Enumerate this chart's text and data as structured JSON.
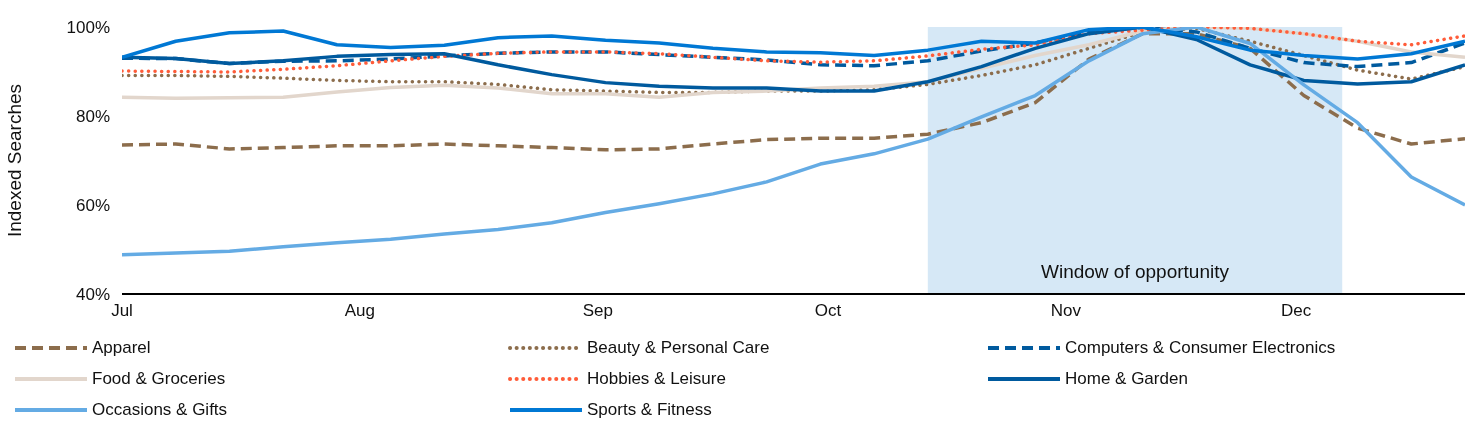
{
  "chart_data": {
    "type": "line",
    "ylabel": "Indexed Searches",
    "x": [
      "--07-01",
      "--07-08",
      "--07-15",
      "--07-22",
      "--07-29",
      "--08-05",
      "--08-12",
      "--08-19",
      "--08-26",
      "--09-02",
      "--09-09",
      "--09-16",
      "--09-23",
      "--09-30",
      "--10-07",
      "--10-14",
      "--10-21",
      "--10-28",
      "--11-04",
      "--11-11",
      "--11-18",
      "--11-25",
      "--12-02",
      "--12-09",
      "--12-16",
      "--12-23"
    ],
    "xlim": [
      "--07-01",
      "--12-23"
    ],
    "xticks": [
      {
        "value": "--07-01",
        "label": "Jul"
      },
      {
        "value": "--08-01",
        "label": "Aug"
      },
      {
        "value": "--09-01",
        "label": "Sep"
      },
      {
        "value": "--10-01",
        "label": "Oct"
      },
      {
        "value": "--11-01",
        "label": "Nov"
      },
      {
        "value": "--12-01",
        "label": "Dec"
      }
    ],
    "ylim": [
      40,
      100
    ],
    "yticks": [
      {
        "value": 40,
        "label": "40%"
      },
      {
        "value": 60,
        "label": "60%"
      },
      {
        "value": 80,
        "label": "80%"
      },
      {
        "value": 100,
        "label": "100%"
      }
    ],
    "legend": "bottom",
    "marker": "none",
    "bands": [
      {
        "axis": "x",
        "from": "--10-14",
        "to": "--12-07",
        "label": "Window of opportunity",
        "color": "#d6e8f6"
      }
    ],
    "series": [
      {
        "name": "Apparel",
        "color": "#8c6d4c",
        "line_style": "dashed",
        "values": [
          73.5,
          73.7,
          72.6,
          72.9,
          73.3,
          73.3,
          73.7,
          73.3,
          72.9,
          72.4,
          72.6,
          73.7,
          74.7,
          75,
          75,
          75.9,
          78.5,
          83,
          92.8,
          98.5,
          98.5,
          95.2,
          84.6,
          77.3,
          73.7,
          74.9
        ]
      },
      {
        "name": "Beauty & Personal Care",
        "color": "#8c6d4c",
        "line_style": "dotted",
        "values": [
          89.1,
          89.1,
          88.9,
          88.5,
          88,
          87.7,
          87.7,
          87.1,
          85.9,
          85.6,
          85.3,
          85.3,
          85.6,
          85.6,
          85.9,
          87.1,
          89.1,
          91.5,
          95.2,
          98.9,
          99.7,
          96.8,
          93.6,
          90.3,
          88.3,
          91.1
        ]
      },
      {
        "name": "Computers & Consumer Electronics",
        "color": "#005a9e",
        "line_style": "dashed",
        "values": [
          93,
          92.9,
          91.8,
          92.3,
          92.4,
          92.8,
          93.5,
          94.1,
          94.4,
          94.4,
          93.8,
          93.2,
          92.6,
          91.5,
          91.3,
          92.4,
          94.6,
          96.4,
          98.9,
          99.9,
          98.9,
          95.2,
          92,
          91.1,
          92,
          96.4
        ]
      },
      {
        "name": "Food & Groceries",
        "color": "#e2d6cc",
        "line_style": "solid",
        "values": [
          84.2,
          84,
          84.1,
          84.2,
          85.4,
          86.4,
          86.9,
          86.3,
          85,
          85,
          84.2,
          85.3,
          85.6,
          86.3,
          86.7,
          87.7,
          90.7,
          93.6,
          96,
          99.1,
          100,
          99.7,
          98.5,
          96.8,
          94.4,
          93.2
        ]
      },
      {
        "name": "Hobbies & Leisure",
        "color": "#ff5c39",
        "line_style": "dotted",
        "values": [
          90.1,
          90,
          89.9,
          90.5,
          91.3,
          92.4,
          93.4,
          94.1,
          94.4,
          94.4,
          94,
          93.2,
          92.4,
          92.1,
          92.4,
          93.5,
          95,
          96,
          98.5,
          99.3,
          100,
          99.7,
          98.5,
          96.8,
          96,
          98
        ]
      },
      {
        "name": "Home & Garden",
        "color": "#005a9e",
        "line_style": "solid",
        "values": [
          93.2,
          92.9,
          91.8,
          92.4,
          93.4,
          93.8,
          94,
          91.5,
          89.3,
          87.5,
          86.7,
          86.3,
          86.3,
          85.6,
          85.6,
          87.7,
          91.1,
          95.2,
          98.5,
          100,
          97.2,
          91.5,
          88,
          87.2,
          87.7,
          91.5
        ]
      },
      {
        "name": "Occasions & Gifts",
        "color": "#64abe4",
        "line_style": "solid",
        "values": [
          48.8,
          49.2,
          49.6,
          50.6,
          51.5,
          52.3,
          53.5,
          54.5,
          56,
          58.3,
          60.3,
          62.5,
          65.2,
          69.2,
          71.5,
          74.8,
          79.8,
          84.6,
          92.4,
          98.5,
          100,
          96.3,
          87,
          78.5,
          66.3,
          60
        ]
      },
      {
        "name": "Sports & Fitness",
        "color": "#0078d4",
        "line_style": "solid",
        "values": [
          93.2,
          96.8,
          98.7,
          99.1,
          96,
          95.4,
          95.9,
          97.6,
          98,
          97,
          96.4,
          95.2,
          94.4,
          94.2,
          93.6,
          94.8,
          96.8,
          96.4,
          99.4,
          100,
          97.8,
          94.8,
          93.6,
          92.8,
          94,
          96.8
        ]
      }
    ]
  }
}
